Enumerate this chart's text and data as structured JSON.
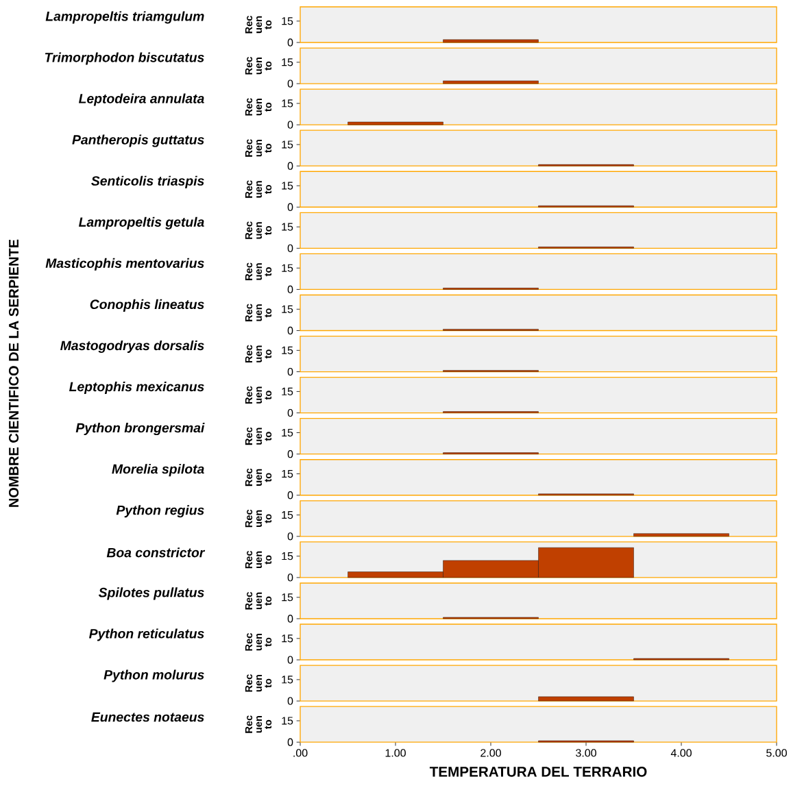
{
  "chart_data": [
    {
      "type": "histogram",
      "title": "Lampropeltis triamgulum",
      "ylabel": "Rec uen to",
      "annotations": [
        "NOMBRE CIENTIFICO DE LA SERPIENTE"
      ],
      "bins": [
        0.5,
        1.5,
        2.5,
        3.5,
        4.5
      ],
      "values": [
        0,
        2,
        0,
        0
      ],
      "color": "#c04000",
      "xlim": [
        0,
        5
      ],
      "ylim": [
        0,
        25
      ],
      "yticks": [
        0,
        15
      ],
      "tick_labels": "y"
    },
    {
      "type": "histogram",
      "title": "Trimorphodon biscutatus",
      "ylabel": "Rec uen to",
      "bins": [
        0.5,
        1.5,
        2.5,
        3.5,
        4.5
      ],
      "values": [
        0,
        2,
        0,
        0
      ],
      "color": "#c04000",
      "xlim": [
        0,
        5
      ],
      "ylim": [
        0,
        25
      ],
      "yticks": [
        0,
        15
      ],
      "tick_labels": "y"
    },
    {
      "type": "histogram",
      "title": "Leptodeira annulata",
      "ylabel": "Rec uen to",
      "bins": [
        0.5,
        1.5,
        2.5,
        3.5,
        4.5
      ],
      "values": [
        2,
        0,
        0,
        0
      ],
      "color": "#c04000",
      "xlim": [
        0,
        5
      ],
      "ylim": [
        0,
        25
      ],
      "yticks": [
        0,
        15
      ],
      "tick_labels": "y"
    },
    {
      "type": "histogram",
      "title": "Pantheropis guttatus",
      "ylabel": "Rec uen to",
      "bins": [
        0.5,
        1.5,
        2.5,
        3.5,
        4.5
      ],
      "values": [
        0,
        0,
        1,
        0
      ],
      "color": "#c04000",
      "xlim": [
        0,
        5
      ],
      "ylim": [
        0,
        25
      ],
      "yticks": [
        0,
        15
      ],
      "tick_labels": "y"
    },
    {
      "type": "histogram",
      "title": "Senticolis triaspis",
      "ylabel": "Rec uen to",
      "bins": [
        0.5,
        1.5,
        2.5,
        3.5,
        4.5
      ],
      "values": [
        0,
        0,
        1,
        0
      ],
      "color": "#c04000",
      "xlim": [
        0,
        5
      ],
      "ylim": [
        0,
        25
      ],
      "yticks": [
        0,
        15
      ],
      "tick_labels": "y"
    },
    {
      "type": "histogram",
      "title": "Lampropeltis getula",
      "ylabel": "Rec uen to",
      "bins": [
        0.5,
        1.5,
        2.5,
        3.5,
        4.5
      ],
      "values": [
        0,
        0,
        1,
        0
      ],
      "color": "#c04000",
      "xlim": [
        0,
        5
      ],
      "ylim": [
        0,
        25
      ],
      "yticks": [
        0,
        15
      ],
      "tick_labels": "y"
    },
    {
      "type": "histogram",
      "title": "Masticophis mentovarius",
      "ylabel": "Rec uen to",
      "bins": [
        0.5,
        1.5,
        2.5,
        3.5,
        4.5
      ],
      "values": [
        0,
        1,
        0,
        0
      ],
      "color": "#c04000",
      "xlim": [
        0,
        5
      ],
      "ylim": [
        0,
        25
      ],
      "yticks": [
        0,
        15
      ],
      "tick_labels": "y"
    },
    {
      "type": "histogram",
      "title": "Conophis lineatus",
      "ylabel": "Rec uen to",
      "bins": [
        0.5,
        1.5,
        2.5,
        3.5,
        4.5
      ],
      "values": [
        0,
        1,
        0,
        0
      ],
      "color": "#c04000",
      "xlim": [
        0,
        5
      ],
      "ylim": [
        0,
        25
      ],
      "yticks": [
        0,
        15
      ],
      "tick_labels": "y"
    },
    {
      "type": "histogram",
      "title": "Mastogodryas dorsalis",
      "ylabel": "Rec uen to",
      "bins": [
        0.5,
        1.5,
        2.5,
        3.5,
        4.5
      ],
      "values": [
        0,
        1,
        0,
        0
      ],
      "color": "#c04000",
      "xlim": [
        0,
        5
      ],
      "ylim": [
        0,
        25
      ],
      "yticks": [
        0,
        15
      ],
      "tick_labels": "y"
    },
    {
      "type": "histogram",
      "title": "Leptophis mexicanus",
      "ylabel": "Rec uen to",
      "bins": [
        0.5,
        1.5,
        2.5,
        3.5,
        4.5
      ],
      "values": [
        0,
        1,
        0,
        0
      ],
      "color": "#c04000",
      "xlim": [
        0,
        5
      ],
      "ylim": [
        0,
        25
      ],
      "yticks": [
        0,
        15
      ],
      "tick_labels": "y"
    },
    {
      "type": "histogram",
      "title": "Python brongersmai",
      "ylabel": "Rec uen to",
      "bins": [
        0.5,
        1.5,
        2.5,
        3.5,
        4.5
      ],
      "values": [
        0,
        1,
        0,
        0
      ],
      "color": "#c04000",
      "xlim": [
        0,
        5
      ],
      "ylim": [
        0,
        25
      ],
      "yticks": [
        0,
        15
      ],
      "tick_labels": "y"
    },
    {
      "type": "histogram",
      "title": "Morelia spilota",
      "ylabel": "Rec uen to",
      "bins": [
        0.5,
        1.5,
        2.5,
        3.5,
        4.5
      ],
      "values": [
        0,
        0,
        1,
        0
      ],
      "color": "#c04000",
      "xlim": [
        0,
        5
      ],
      "ylim": [
        0,
        25
      ],
      "yticks": [
        0,
        15
      ],
      "tick_labels": "y"
    },
    {
      "type": "histogram",
      "title": "Python regius",
      "ylabel": "Rec uen to",
      "bins": [
        0.5,
        1.5,
        2.5,
        3.5,
        4.5
      ],
      "values": [
        0,
        0,
        0,
        2
      ],
      "color": "#c04000",
      "xlim": [
        0,
        5
      ],
      "ylim": [
        0,
        25
      ],
      "yticks": [
        0,
        15
      ],
      "tick_labels": "y"
    },
    {
      "type": "histogram",
      "title": "Boa constrictor",
      "ylabel": "Rec uen to",
      "bins": [
        0.5,
        1.5,
        2.5,
        3.5,
        4.5
      ],
      "values": [
        4,
        12,
        21,
        0
      ],
      "color": "#c04000",
      "xlim": [
        0,
        5
      ],
      "ylim": [
        0,
        25
      ],
      "yticks": [
        0,
        15
      ],
      "tick_labels": "y"
    },
    {
      "type": "histogram",
      "title": "Spilotes pullatus",
      "ylabel": "Rec uen to",
      "bins": [
        0.5,
        1.5,
        2.5,
        3.5,
        4.5
      ],
      "values": [
        0,
        1,
        0,
        0
      ],
      "color": "#c04000",
      "xlim": [
        0,
        5
      ],
      "ylim": [
        0,
        25
      ],
      "yticks": [
        0,
        15
      ],
      "tick_labels": "y"
    },
    {
      "type": "histogram",
      "title": "Python reticulatus",
      "ylabel": "Rec uen to",
      "bins": [
        0.5,
        1.5,
        2.5,
        3.5,
        4.5
      ],
      "values": [
        0,
        0,
        0,
        1
      ],
      "color": "#c04000",
      "xlim": [
        0,
        5
      ],
      "ylim": [
        0,
        25
      ],
      "yticks": [
        0,
        15
      ],
      "tick_labels": "y"
    },
    {
      "type": "histogram",
      "title": "Python molurus",
      "ylabel": "Rec uen to",
      "bins": [
        0.5,
        1.5,
        2.5,
        3.5,
        4.5
      ],
      "values": [
        0,
        0,
        3,
        0
      ],
      "color": "#c04000",
      "xlim": [
        0,
        5
      ],
      "ylim": [
        0,
        25
      ],
      "yticks": [
        0,
        15
      ],
      "tick_labels": "y"
    },
    {
      "type": "histogram",
      "title": "Eunectes notaeus",
      "ylabel": "Rec uen to",
      "xlabel": "TEMPERATURA DEL TERRARIO",
      "bins": [
        0.5,
        1.5,
        2.5,
        3.5,
        4.5
      ],
      "values": [
        0,
        0,
        1,
        0
      ],
      "color": "#c04000",
      "xlim": [
        0,
        5
      ],
      "ylim": [
        0,
        25
      ],
      "yticks": [
        0,
        15
      ],
      "xticks": [
        {
          "value": 0,
          "label": ".00"
        },
        {
          "value": 1,
          "label": "1.00"
        },
        {
          "value": 2,
          "label": "2.00"
        },
        {
          "value": 3,
          "label": "3.00"
        },
        {
          "value": 4,
          "label": "4.00"
        },
        {
          "value": 5,
          "label": "5.00"
        }
      ]
    }
  ]
}
